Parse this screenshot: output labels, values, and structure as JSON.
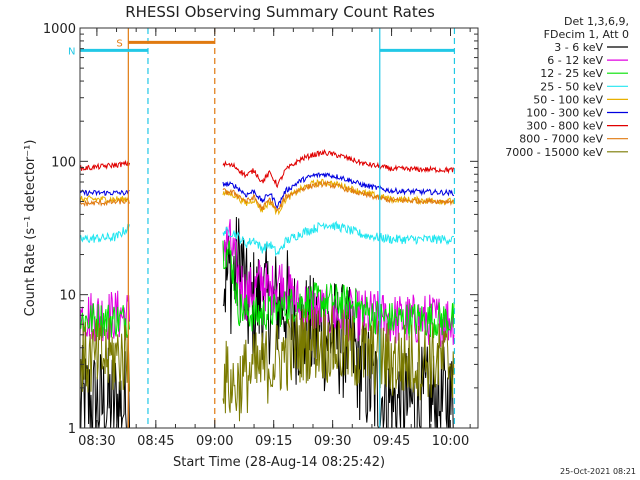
{
  "chart_data": {
    "type": "line",
    "title": "RHESSI Observing Summary Count Rates",
    "xlabel": "Start Time (28-Aug-14 08:25:42)",
    "ylabel": "Count Rate (s⁻¹ detector⁻¹)",
    "yscale": "log",
    "ylim": [
      1,
      1000
    ],
    "xlim": [
      "08:25:42",
      "10:07:00"
    ],
    "x_ticks": [
      "08:30",
      "08:45",
      "09:00",
      "09:15",
      "09:30",
      "09:45",
      "10:00"
    ],
    "y_ticks": [
      "1",
      "10",
      "100",
      "1000"
    ],
    "grid": false,
    "legend_position": "top-right",
    "legend_header": [
      "Det 1,3,6,9,",
      "FDecim 1, Att 0"
    ],
    "data_gaps": [
      [
        "08:38:30",
        "09:02:00"
      ]
    ],
    "vertical_markers": [
      {
        "time": "08:38:00",
        "color": "#e07a10",
        "style": "solid"
      },
      {
        "time": "08:43:00",
        "color": "#22c8e6",
        "style": "dashed"
      },
      {
        "time": "09:00:00",
        "color": "#e07a10",
        "style": "dashed"
      },
      {
        "time": "09:42:00",
        "color": "#22c8e6",
        "style": "solid"
      },
      {
        "time": "10:01:00",
        "color": "#22c8e6",
        "style": "dashed"
      }
    ],
    "flag_bars": [
      {
        "label": "S",
        "start": "08:38:00",
        "end": "09:00:00",
        "y": 780,
        "color": "#e07a10"
      },
      {
        "label": "N",
        "start": "08:25:42",
        "end": "08:43:00",
        "y": 680,
        "color": "#22c8e6"
      },
      {
        "label": "",
        "start": "09:42:00",
        "end": "10:01:00",
        "y": 680,
        "color": "#22c8e6"
      }
    ],
    "series": [
      {
        "name": "3 - 6 keV",
        "color": "#000000",
        "noise": 0.45,
        "points": [
          [
            "08:25:42",
            1.5
          ],
          [
            "08:38:00",
            1.5
          ],
          [
            "09:02:00",
            13
          ],
          [
            "09:05:00",
            14
          ],
          [
            "09:07:00",
            18
          ],
          [
            "09:08:00",
            8
          ],
          [
            "09:12:00",
            9
          ],
          [
            "09:15:00",
            8
          ],
          [
            "09:18:00",
            9
          ],
          [
            "09:20:00",
            6
          ],
          [
            "09:25:00",
            5
          ],
          [
            "09:30:00",
            5
          ],
          [
            "09:35:00",
            4
          ],
          [
            "09:40:00",
            2
          ],
          [
            "09:45:00",
            1.5
          ],
          [
            "10:01:00",
            1.5
          ]
        ]
      },
      {
        "name": "6 - 12 keV",
        "color": "#e000e0",
        "noise": 0.2,
        "points": [
          [
            "08:25:42",
            7
          ],
          [
            "08:38:00",
            7
          ],
          [
            "09:02:00",
            25
          ],
          [
            "09:04:00",
            24
          ],
          [
            "09:06:00",
            14
          ],
          [
            "09:08:00",
            10
          ],
          [
            "09:10:00",
            11
          ],
          [
            "09:12:00",
            13
          ],
          [
            "09:14:00",
            10
          ],
          [
            "09:16:00",
            13
          ],
          [
            "09:18:00",
            12
          ],
          [
            "09:20:00",
            9
          ],
          [
            "09:25:00",
            8
          ],
          [
            "09:30:00",
            7
          ],
          [
            "09:40:00",
            7
          ],
          [
            "09:45:00",
            6.5
          ],
          [
            "10:01:00",
            6.5
          ]
        ]
      },
      {
        "name": "12 - 25 keV",
        "color": "#00e000",
        "noise": 0.14,
        "points": [
          [
            "08:25:42",
            6.5
          ],
          [
            "08:38:00",
            6.5
          ],
          [
            "09:02:00",
            22
          ],
          [
            "09:04:00",
            20
          ],
          [
            "09:06:00",
            8
          ],
          [
            "09:10:00",
            7
          ],
          [
            "09:15:00",
            7.5
          ],
          [
            "09:20:00",
            8.5
          ],
          [
            "09:25:00",
            9
          ],
          [
            "09:30:00",
            9
          ],
          [
            "09:35:00",
            8.5
          ],
          [
            "09:40:00",
            7
          ],
          [
            "09:45:00",
            6.5
          ],
          [
            "10:01:00",
            6.5
          ]
        ]
      },
      {
        "name": "25 - 50 keV",
        "color": "#22e6f0",
        "noise": 0.035,
        "points": [
          [
            "08:25:42",
            26
          ],
          [
            "08:35:00",
            27
          ],
          [
            "08:38:00",
            32
          ],
          [
            "09:02:00",
            30
          ],
          [
            "09:05:00",
            29
          ],
          [
            "09:08:00",
            24
          ],
          [
            "09:10:00",
            26
          ],
          [
            "09:12:00",
            22
          ],
          [
            "09:14:00",
            24
          ],
          [
            "09:16:00",
            20
          ],
          [
            "09:18:00",
            25
          ],
          [
            "09:22:00",
            29
          ],
          [
            "09:25:00",
            31
          ],
          [
            "09:28:00",
            34
          ],
          [
            "09:32:00",
            32
          ],
          [
            "09:38:00",
            28
          ],
          [
            "09:45:00",
            26
          ],
          [
            "10:01:00",
            26
          ]
        ]
      },
      {
        "name": "50 - 100 keV",
        "color": "#e8b000",
        "noise": 0.025,
        "points": [
          [
            "08:25:42",
            52
          ],
          [
            "08:38:00",
            52
          ],
          [
            "09:02:00",
            58
          ],
          [
            "09:05:00",
            56
          ],
          [
            "09:08:00",
            48
          ],
          [
            "09:10:00",
            52
          ],
          [
            "09:12:00",
            43
          ],
          [
            "09:14:00",
            50
          ],
          [
            "09:16:00",
            41
          ],
          [
            "09:18:00",
            52
          ],
          [
            "09:22:00",
            62
          ],
          [
            "09:25:00",
            68
          ],
          [
            "09:28:00",
            70
          ],
          [
            "09:32:00",
            66
          ],
          [
            "09:38:00",
            58
          ],
          [
            "09:45:00",
            52
          ],
          [
            "10:01:00",
            50
          ]
        ]
      },
      {
        "name": "100 - 300 keV",
        "color": "#0000e0",
        "noise": 0.02,
        "points": [
          [
            "08:25:42",
            58
          ],
          [
            "08:38:00",
            58
          ],
          [
            "09:02:00",
            68
          ],
          [
            "09:05:00",
            66
          ],
          [
            "09:08:00",
            56
          ],
          [
            "09:10:00",
            60
          ],
          [
            "09:12:00",
            50
          ],
          [
            "09:14:00",
            58
          ],
          [
            "09:16:00",
            46
          ],
          [
            "09:18:00",
            60
          ],
          [
            "09:22:00",
            72
          ],
          [
            "09:25:00",
            78
          ],
          [
            "09:28:00",
            80
          ],
          [
            "09:32:00",
            76
          ],
          [
            "09:38:00",
            66
          ],
          [
            "09:45:00",
            60
          ],
          [
            "10:01:00",
            58
          ]
        ]
      },
      {
        "name": "300 - 800 keV",
        "color": "#e00000",
        "noise": 0.02,
        "points": [
          [
            "08:25:42",
            88
          ],
          [
            "08:38:00",
            96
          ],
          [
            "09:02:00",
            96
          ],
          [
            "09:05:00",
            92
          ],
          [
            "09:08:00",
            78
          ],
          [
            "09:10:00",
            86
          ],
          [
            "09:12:00",
            70
          ],
          [
            "09:14:00",
            82
          ],
          [
            "09:16:00",
            66
          ],
          [
            "09:18:00",
            86
          ],
          [
            "09:22:00",
            104
          ],
          [
            "09:25:00",
            112
          ],
          [
            "09:28:00",
            116
          ],
          [
            "09:32:00",
            110
          ],
          [
            "09:38:00",
            96
          ],
          [
            "09:45:00",
            88
          ],
          [
            "10:01:00",
            86
          ]
        ]
      },
      {
        "name": "800 - 7000 keV",
        "color": "#e07a10",
        "noise": 0.02,
        "points": [
          [
            "08:25:42",
            48
          ],
          [
            "08:38:00",
            50
          ],
          [
            "09:02:00",
            60
          ],
          [
            "09:05:00",
            58
          ],
          [
            "09:08:00",
            50
          ],
          [
            "09:10:00",
            54
          ],
          [
            "09:12:00",
            44
          ],
          [
            "09:14:00",
            52
          ],
          [
            "09:16:00",
            42
          ],
          [
            "09:18:00",
            54
          ],
          [
            "09:22:00",
            62
          ],
          [
            "09:25:00",
            66
          ],
          [
            "09:28:00",
            68
          ],
          [
            "09:32:00",
            64
          ],
          [
            "09:38:00",
            56
          ],
          [
            "09:45:00",
            51
          ],
          [
            "10:01:00",
            50
          ]
        ]
      },
      {
        "name": "7000 - 15000 keV",
        "color": "#7a7a00",
        "noise": 0.3,
        "points": [
          [
            "08:25:42",
            3.2
          ],
          [
            "08:38:00",
            3.5
          ],
          [
            "09:02:00",
            2.5
          ],
          [
            "09:05:00",
            2.0
          ],
          [
            "09:08:00",
            2.5
          ],
          [
            "09:12:00",
            2.8
          ],
          [
            "09:18:00",
            3.6
          ],
          [
            "09:22:00",
            4.2
          ],
          [
            "09:26:00",
            4.5
          ],
          [
            "09:32:00",
            4.0
          ],
          [
            "09:38:00",
            3.5
          ],
          [
            "09:45:00",
            3.2
          ],
          [
            "10:01:00",
            3.2
          ]
        ]
      }
    ]
  },
  "footer": {
    "timestamp": "25-Oct-2021 08:21"
  }
}
